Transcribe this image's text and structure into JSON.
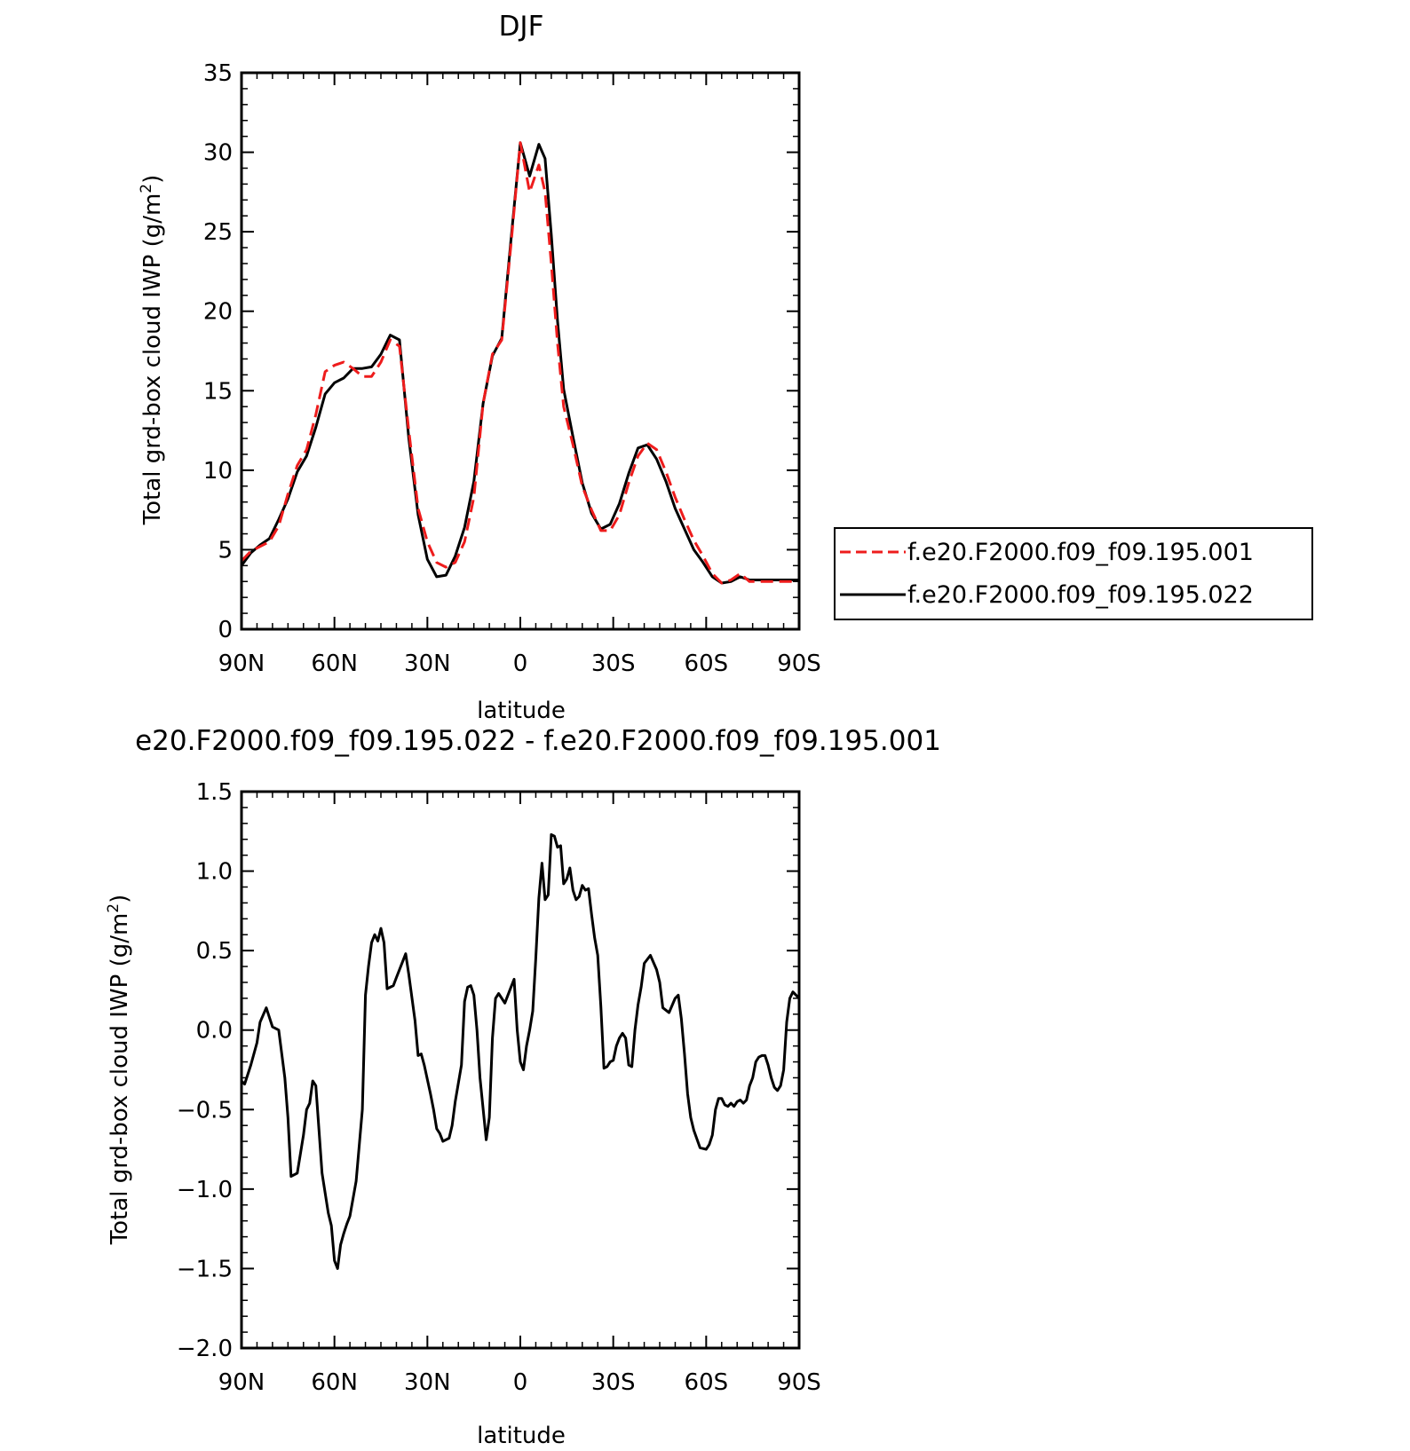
{
  "colors": {
    "run_001": "#ee1c1c",
    "run_022": "#000000"
  },
  "top": {
    "title": "DJF",
    "ylabel": "Total grd-box cloud IWP (g/m",
    "ylabel_sup": "2",
    "ylabel_end": ")",
    "xlabel": "latitude",
    "yticks": [
      "0",
      "5",
      "10",
      "15",
      "20",
      "25",
      "30",
      "35"
    ],
    "xticks": [
      "90N",
      "60N",
      "30N",
      "0",
      "30S",
      "60S",
      "90S"
    ],
    "legend": [
      "f.e20.F2000.f09_f09.195.001",
      "f.e20.F2000.f09_f09.195.022"
    ]
  },
  "bottom": {
    "title": "e20.F2000.f09_f09.195.022 - f.e20.F2000.f09_f09.195.001",
    "ylabel": "Total grd-box cloud IWP (g/m",
    "ylabel_sup": "2",
    "ylabel_end": ")",
    "xlabel": "latitude",
    "yticks": [
      "-2.0",
      "-1.5",
      "-1.0",
      "-0.5",
      "0.0",
      "0.5",
      "1.0",
      "1.5"
    ],
    "xticks": [
      "90N",
      "60N",
      "30N",
      "0",
      "30S",
      "60S",
      "90S"
    ]
  },
  "chart_data": [
    {
      "type": "line",
      "title": "DJF",
      "xlabel": "latitude",
      "ylabel": "Total grd-box cloud IWP (g/m2)",
      "xlim": [
        90,
        -90
      ],
      "ylim": [
        0,
        35
      ],
      "x_ticks": [
        90,
        60,
        30,
        0,
        -30,
        -60,
        -90
      ],
      "legend": "right",
      "series": [
        {
          "name": "f.e20.F2000.f09_f09.195.001",
          "style": "dashed",
          "color": "#ee1c1c",
          "x": [
            90,
            87,
            84,
            81,
            78,
            75,
            72,
            69,
            66,
            63,
            60,
            57,
            54,
            51,
            48,
            45,
            42,
            39,
            36,
            33,
            30,
            27,
            24,
            21,
            18,
            15,
            12,
            9,
            6,
            3,
            0,
            -3,
            -6,
            -8,
            -10,
            -12,
            -14,
            -17,
            -20,
            -23,
            -26,
            -29,
            -32,
            -35,
            -38,
            -41,
            -44,
            -47,
            -50,
            -53,
            -56,
            -59,
            -62,
            -65,
            -68,
            -71,
            -74,
            -77,
            -80,
            -83,
            -86,
            -90
          ],
          "y": [
            4.3,
            4.9,
            5.2,
            5.5,
            6.5,
            8.5,
            10.3,
            11.3,
            13.5,
            16.2,
            16.6,
            16.8,
            16.4,
            15.9,
            15.9,
            16.8,
            18.2,
            17.8,
            12.5,
            7.6,
            5.5,
            4.2,
            3.9,
            4.2,
            5.5,
            8.3,
            14.2,
            17.3,
            18.2,
            24.2,
            30.6,
            27.5,
            29.2,
            27.5,
            23.0,
            18.0,
            14.0,
            11.6,
            9.0,
            7.5,
            6.2,
            6.2,
            7.2,
            9.2,
            10.9,
            11.7,
            11.3,
            9.9,
            8.3,
            6.9,
            5.6,
            4.6,
            3.5,
            2.9,
            3.1,
            3.5,
            3.0,
            3.0,
            3.0,
            3.0,
            3.0,
            3.0
          ]
        },
        {
          "name": "f.e20.F2000.f09_f09.195.022",
          "style": "solid",
          "color": "#000000",
          "x": [
            90,
            87,
            84,
            81,
            78,
            75,
            72,
            69,
            66,
            63,
            60,
            57,
            54,
            51,
            48,
            45,
            42,
            39,
            36,
            33,
            30,
            27,
            24,
            21,
            18,
            15,
            12,
            9,
            6,
            3,
            0,
            -3,
            -6,
            -8,
            -10,
            -12,
            -14,
            -17,
            -20,
            -23,
            -26,
            -29,
            -32,
            -35,
            -38,
            -41,
            -44,
            -47,
            -50,
            -53,
            -56,
            -59,
            -62,
            -65,
            -68,
            -71,
            -74,
            -77,
            -80,
            -83,
            -86,
            -90
          ],
          "y": [
            4.0,
            4.8,
            5.3,
            5.7,
            6.9,
            8.2,
            9.9,
            10.9,
            12.7,
            14.8,
            15.5,
            15.8,
            16.4,
            16.4,
            16.5,
            17.3,
            18.5,
            18.2,
            12.0,
            7.2,
            4.4,
            3.3,
            3.4,
            4.6,
            6.4,
            9.3,
            14.2,
            17.2,
            18.3,
            24.5,
            30.6,
            28.5,
            30.5,
            29.6,
            24.8,
            19.4,
            15.1,
            12.1,
            9.2,
            7.3,
            6.3,
            6.6,
            7.9,
            9.8,
            11.4,
            11.6,
            10.7,
            9.3,
            7.6,
            6.3,
            5.0,
            4.2,
            3.3,
            2.9,
            3.0,
            3.3,
            3.1,
            3.1,
            3.1,
            3.1,
            3.1,
            3.1
          ]
        }
      ]
    },
    {
      "type": "line",
      "title": "e20.F2000.f09_f09.195.022 - f.e20.F2000.f09_f09.195.001",
      "xlabel": "latitude",
      "ylabel": "Total grd-box cloud IWP (g/m2)",
      "xlim": [
        90,
        -90
      ],
      "ylim": [
        -2.0,
        1.5
      ],
      "x_ticks": [
        90,
        60,
        30,
        0,
        -30,
        -60,
        -90
      ],
      "series": [
        {
          "style": "solid",
          "color": "#000000",
          "x": [
            90,
            89,
            87,
            85,
            84,
            82,
            80,
            78,
            76,
            75,
            74,
            72,
            71,
            70,
            69,
            68,
            67,
            66,
            64,
            62,
            61,
            60,
            59,
            58,
            57,
            56,
            55,
            53,
            51,
            50,
            49,
            48,
            47,
            46,
            45,
            44,
            43,
            41,
            40,
            38,
            37,
            36,
            34,
            33,
            32,
            31,
            29,
            28,
            27,
            26,
            25,
            23,
            22,
            21,
            19,
            18,
            17,
            16,
            15,
            14,
            13,
            11,
            10,
            9,
            8,
            7,
            5,
            3,
            2,
            1,
            0,
            -1,
            -2,
            -3,
            -4,
            -5,
            -6,
            -7,
            -8,
            -9,
            -10,
            -11,
            -12,
            -13,
            -14,
            -15,
            -16,
            -17,
            -18,
            -19,
            -20,
            -21,
            -22,
            -23,
            -24,
            -25,
            -26,
            -27,
            -28,
            -29,
            -30,
            -31,
            -32,
            -33,
            -34,
            -35,
            -36,
            -37,
            -38,
            -39,
            -40,
            -42,
            -44,
            -45,
            -46,
            -48,
            -50,
            -51,
            -52,
            -53,
            -54,
            -55,
            -56,
            -58,
            -60,
            -61,
            -62,
            -63,
            -64,
            -65,
            -66,
            -67,
            -68,
            -69,
            -70,
            -71,
            -72,
            -73,
            -74,
            -75,
            -76,
            -77,
            -78,
            -79,
            -80,
            -81,
            -82,
            -83,
            -84,
            -85,
            -86,
            -87,
            -88,
            -89,
            -90
          ],
          "y": [
            -0.32,
            -0.34,
            -0.22,
            -0.08,
            0.05,
            0.14,
            0.02,
            0.0,
            -0.3,
            -0.55,
            -0.92,
            -0.9,
            -0.78,
            -0.66,
            -0.5,
            -0.46,
            -0.32,
            -0.35,
            -0.9,
            -1.15,
            -1.23,
            -1.45,
            -1.5,
            -1.35,
            -1.28,
            -1.22,
            -1.17,
            -0.95,
            -0.5,
            0.22,
            0.4,
            0.55,
            0.6,
            0.56,
            0.64,
            0.55,
            0.26,
            0.28,
            0.33,
            0.43,
            0.48,
            0.35,
            0.06,
            -0.16,
            -0.15,
            -0.22,
            -0.4,
            -0.5,
            -0.62,
            -0.65,
            -0.7,
            -0.68,
            -0.6,
            -0.45,
            -0.22,
            0.18,
            0.27,
            0.28,
            0.22,
            0.0,
            -0.3,
            -0.69,
            -0.55,
            -0.05,
            0.2,
            0.23,
            0.17,
            0.27,
            0.32,
            0.0,
            -0.2,
            -0.25,
            -0.1,
            0.0,
            0.12,
            0.45,
            0.83,
            1.05,
            0.82,
            0.85,
            1.23,
            1.22,
            1.15,
            1.16,
            0.92,
            0.95,
            1.02,
            0.88,
            0.82,
            0.84,
            0.91,
            0.88,
            0.89,
            0.73,
            0.58,
            0.47,
            0.15,
            -0.24,
            -0.23,
            -0.2,
            -0.19,
            -0.1,
            -0.05,
            -0.02,
            -0.05,
            -0.22,
            -0.23,
            0.0,
            0.16,
            0.27,
            0.42,
            0.47,
            0.38,
            0.3,
            0.14,
            0.11,
            0.2,
            0.22,
            0.07,
            -0.15,
            -0.4,
            -0.55,
            -0.63,
            -0.74,
            -0.75,
            -0.72,
            -0.66,
            -0.5,
            -0.43,
            -0.43,
            -0.47,
            -0.48,
            -0.46,
            -0.48,
            -0.45,
            -0.44,
            -0.46,
            -0.44,
            -0.35,
            -0.3,
            -0.2,
            -0.17,
            -0.16,
            -0.16,
            -0.22,
            -0.3,
            -0.36,
            -0.38,
            -0.35,
            -0.25,
            0.05,
            0.2,
            0.24,
            0.22,
            0.2
          ]
        }
      ]
    }
  ]
}
